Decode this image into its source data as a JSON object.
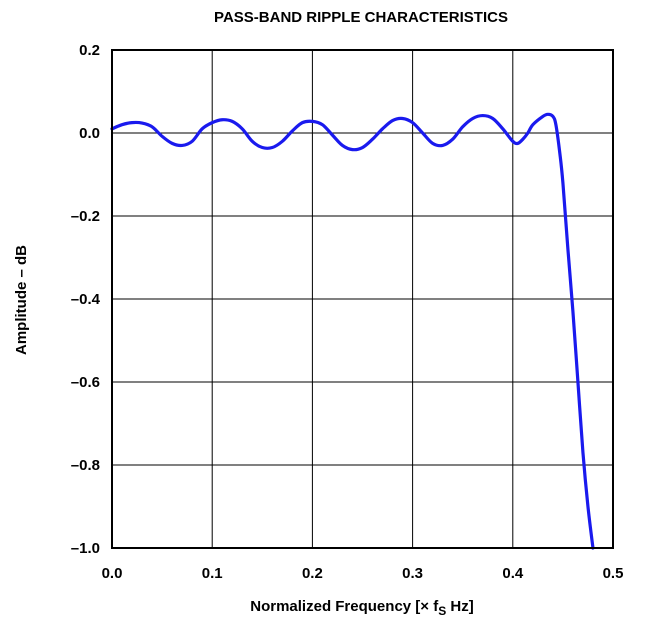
{
  "chart_data": {
    "type": "line",
    "title": "PASS-BAND RIPPLE CHARACTERISTICS",
    "xlabel": "Normalized Frequency [× f",
    "xlabel_sub": "S",
    "xlabel_tail": " Hz]",
    "ylabel": "Amplitude – dB",
    "xlim": [
      0.0,
      0.5
    ],
    "ylim": [
      -1.0,
      0.2
    ],
    "x_ticks": [
      0.0,
      0.1,
      0.2,
      0.3,
      0.4,
      0.5
    ],
    "x_tick_labels": [
      "0.0",
      "0.1",
      "0.2",
      "0.3",
      "0.4",
      "0.5"
    ],
    "y_ticks": [
      0.2,
      0.0,
      -0.2,
      -0.4,
      -0.6,
      -0.8,
      -1.0
    ],
    "y_tick_labels": [
      "0.2",
      "0.0",
      "–0.2",
      "–0.4",
      "–0.6",
      "–0.8",
      "–1.0"
    ],
    "grid": true,
    "colors": {
      "series": "#1a1aee"
    },
    "series": [
      {
        "x": [
          0.0,
          0.01,
          0.02,
          0.03,
          0.04,
          0.05,
          0.06,
          0.07,
          0.08,
          0.09,
          0.1,
          0.11,
          0.12,
          0.13,
          0.14,
          0.15,
          0.16,
          0.17,
          0.18,
          0.19,
          0.2,
          0.21,
          0.22,
          0.23,
          0.24,
          0.25,
          0.26,
          0.27,
          0.28,
          0.29,
          0.3,
          0.31,
          0.32,
          0.33,
          0.34,
          0.35,
          0.36,
          0.37,
          0.38,
          0.39,
          0.4,
          0.405,
          0.41,
          0.415,
          0.42,
          0.43,
          0.435,
          0.44,
          0.443,
          0.447,
          0.45,
          0.455,
          0.46,
          0.465,
          0.47,
          0.475,
          0.48
        ],
        "y": [
          0.01,
          0.02,
          0.025,
          0.024,
          0.015,
          -0.008,
          -0.025,
          -0.03,
          -0.02,
          0.01,
          0.025,
          0.032,
          0.028,
          0.01,
          -0.02,
          -0.035,
          -0.035,
          -0.02,
          0.005,
          0.025,
          0.028,
          0.02,
          -0.005,
          -0.03,
          -0.04,
          -0.035,
          -0.015,
          0.01,
          0.03,
          0.035,
          0.025,
          0.0,
          -0.025,
          -0.03,
          -0.015,
          0.015,
          0.035,
          0.042,
          0.035,
          0.01,
          -0.02,
          -0.025,
          -0.015,
          0.0,
          0.02,
          0.04,
          0.045,
          0.04,
          0.02,
          -0.05,
          -0.12,
          -0.28,
          -0.43,
          -0.6,
          -0.77,
          -0.9,
          -1.0
        ]
      }
    ]
  }
}
